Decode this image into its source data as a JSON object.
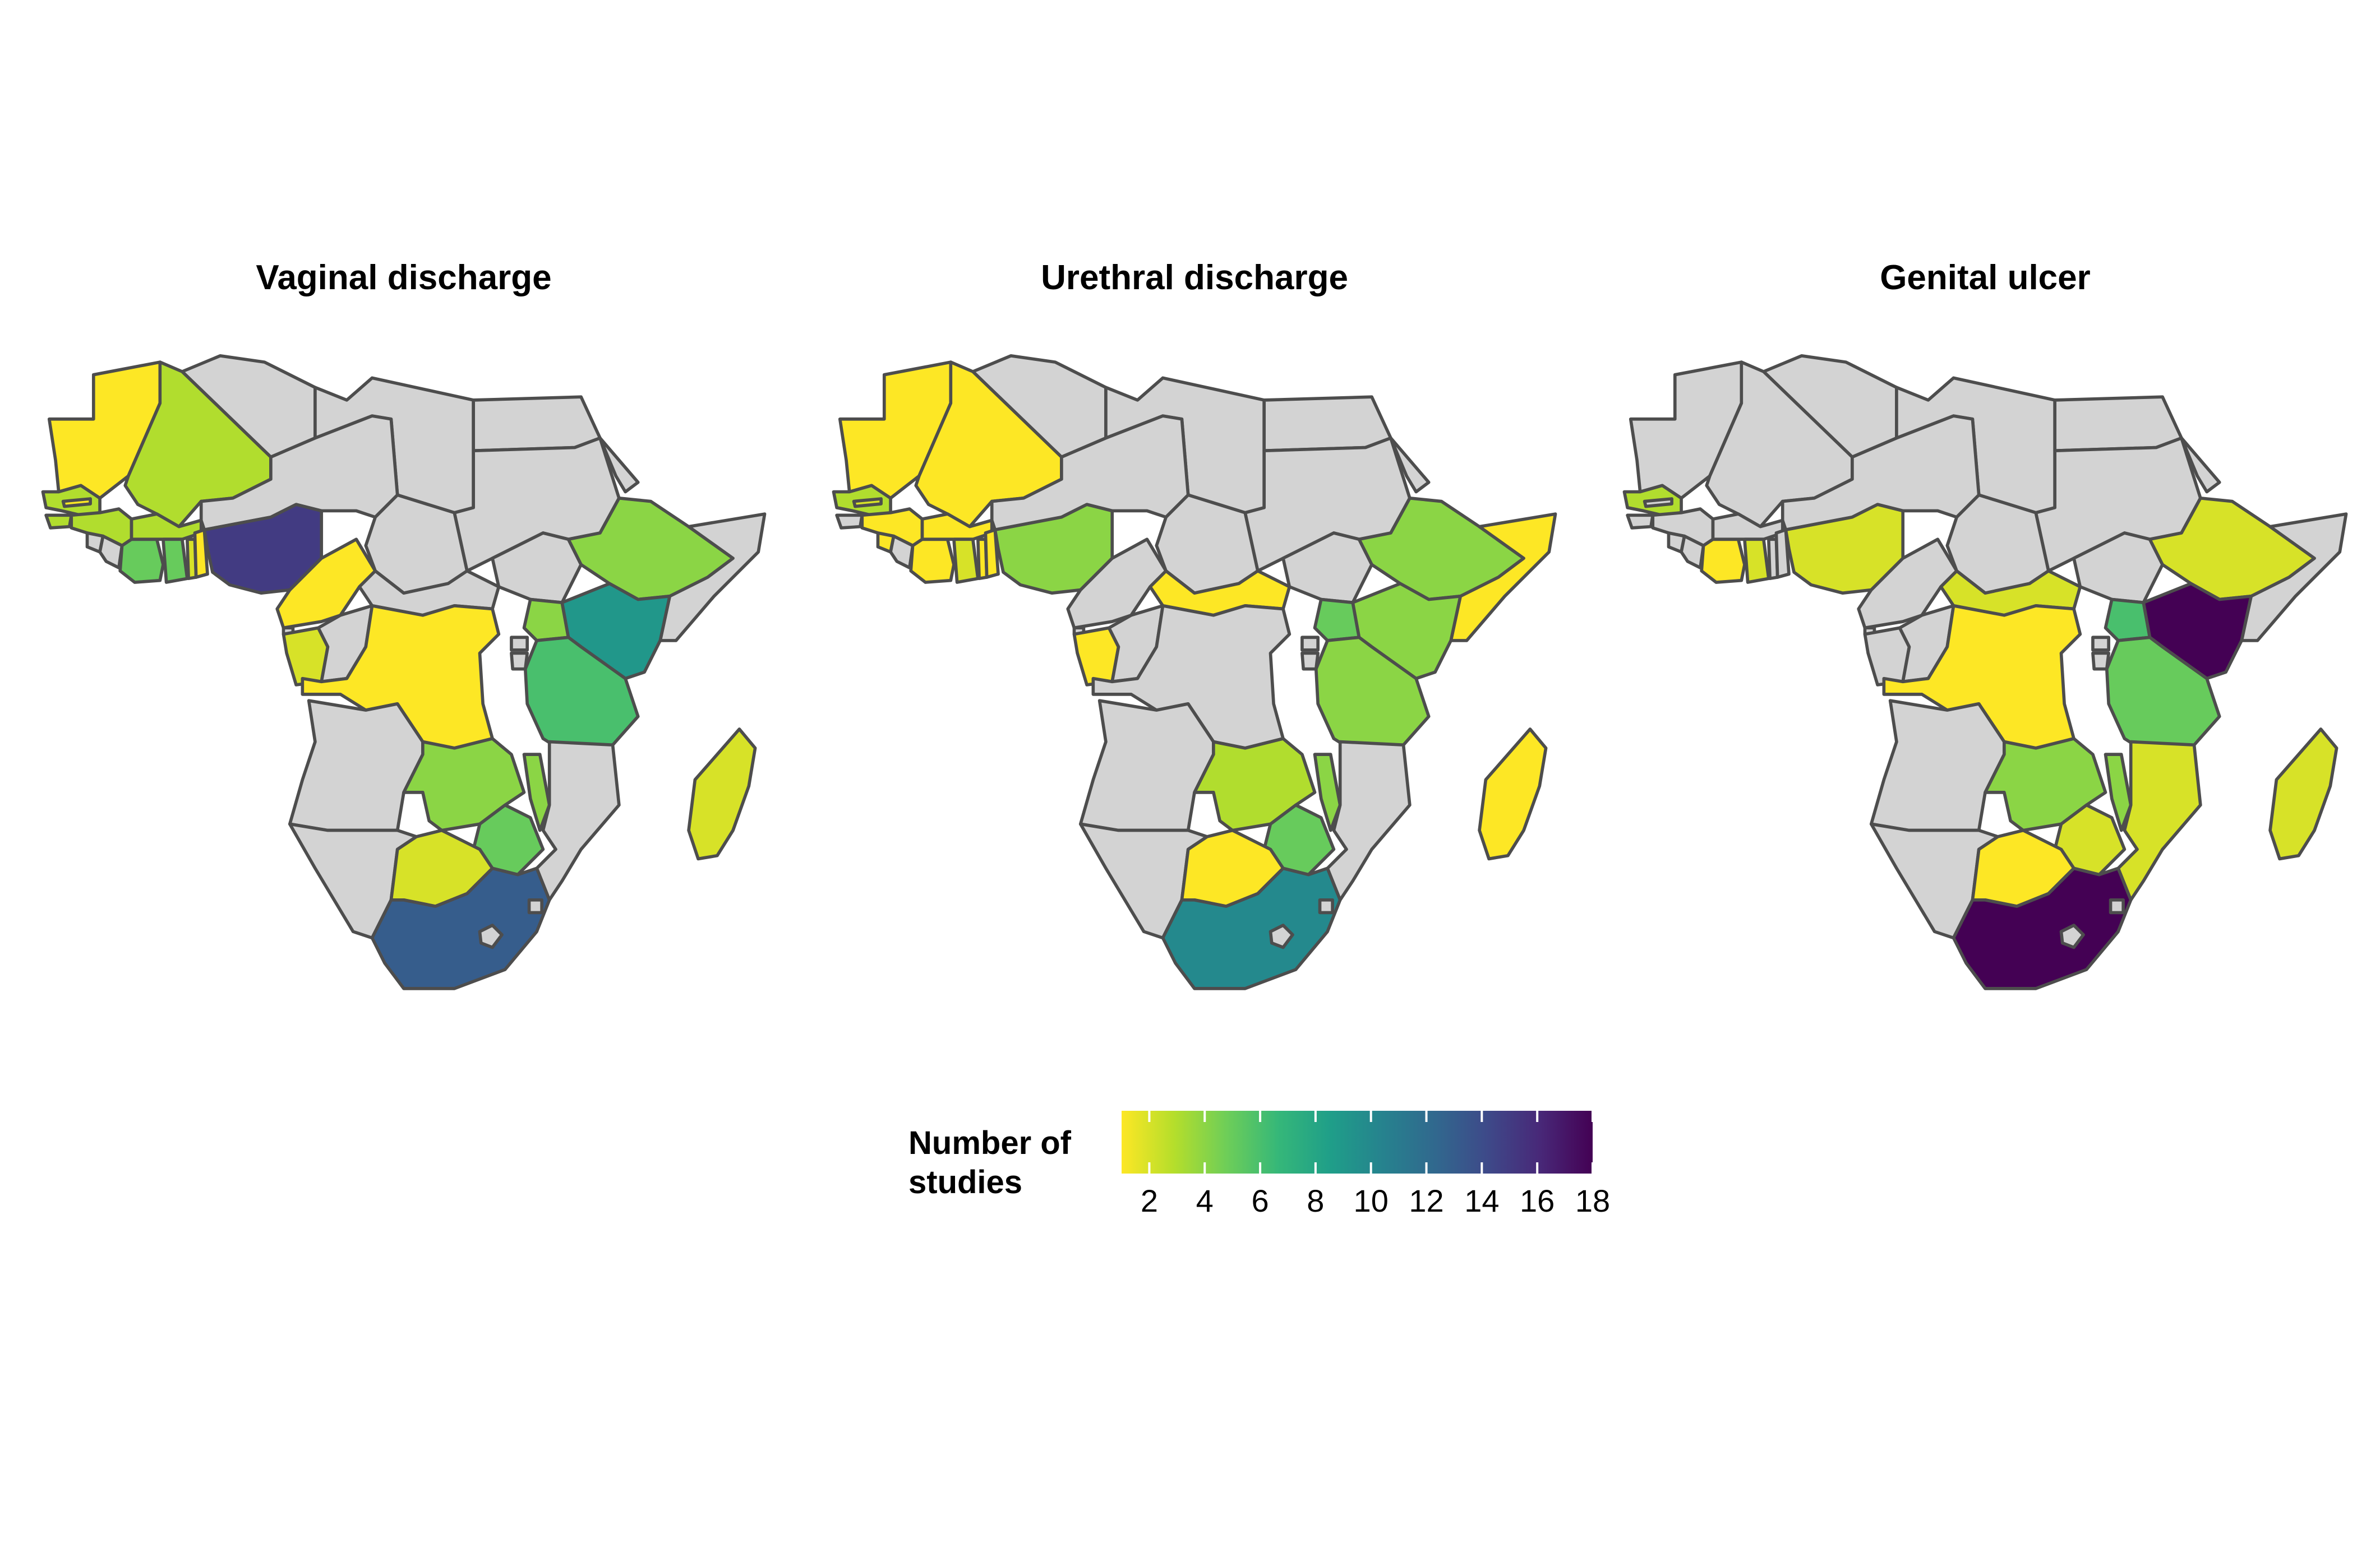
{
  "panels": [
    {
      "title": "Vaginal discharge",
      "values": {
        "mauritania": 1,
        "mali": 3,
        "senegal": 3,
        "gambia": 1,
        "guinea_bissau": 3,
        "guinea": 3,
        "burkina_faso": 3,
        "ivory_coast": 5,
        "ghana": 5,
        "togo": 2,
        "benin": 1,
        "nigeria": 15,
        "cameroon": 1,
        "gabon": 2,
        "drc": 1,
        "ethiopia": 4,
        "uganda": 4,
        "kenya": 9,
        "tanzania": 6,
        "zambia": 4,
        "malawi": 4,
        "zimbabwe": 5,
        "botswana": 2,
        "south_africa": 13,
        "madagascar": 2
      }
    },
    {
      "title": "Urethral discharge",
      "values": {
        "mauritania": 1,
        "mali": 1,
        "senegal": 3,
        "gambia": 2,
        "guinea": 1,
        "sierra_leone": 1,
        "burkina_faso": 1,
        "ivory_coast": 1,
        "ghana": 2,
        "togo": 1,
        "benin": 1,
        "nigeria": 4,
        "car": 1,
        "gabon": 1,
        "ethiopia": 4,
        "somalia": 1,
        "uganda": 5,
        "kenya": 4,
        "tanzania": 4,
        "zambia": 3,
        "malawi": 4,
        "zimbabwe": 5,
        "botswana": 1,
        "south_africa": 10,
        "madagascar": 1
      }
    },
    {
      "title": "Genital ulcer",
      "values": {
        "senegal": 3,
        "ivory_coast": 1,
        "ghana": 2,
        "nigeria": 2,
        "car": 2,
        "drc": 1,
        "ethiopia": 2,
        "uganda": 6,
        "kenya": 18,
        "tanzania": 5,
        "zambia": 4,
        "malawi": 4,
        "zimbabwe": 2,
        "mozambique": 2,
        "botswana": 1,
        "south_africa": 18,
        "madagascar": 2
      }
    }
  ],
  "legend": {
    "title": "Number of studies",
    "min": 1,
    "max": 18,
    "ticks": [
      2,
      4,
      6,
      8,
      10,
      12,
      14,
      16,
      18
    ]
  },
  "colors": {
    "no_data": "#d3d3d3",
    "border": "#4d4d4d",
    "palette": [
      "#fde725",
      "#b5de2b",
      "#6ece58",
      "#35b779",
      "#1f9e89",
      "#26828e",
      "#31688e",
      "#3e4989",
      "#482878",
      "#440154"
    ]
  }
}
